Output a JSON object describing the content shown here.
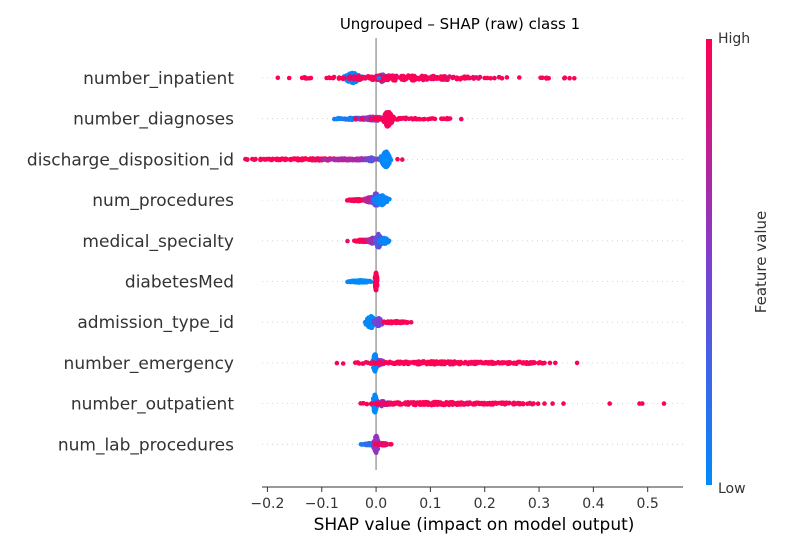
{
  "chart_data": {
    "type": "scatter",
    "subtype": "shap-beeswarm",
    "title": "Ungrouped – SHAP (raw) class 1",
    "xlabel": "SHAP value (impact on model output)",
    "xlim": [
      -0.21,
      0.565
    ],
    "x_ticks": [
      -0.2,
      -0.1,
      0.0,
      0.1,
      0.2,
      0.3,
      0.4,
      0.5
    ],
    "x_tick_labels": [
      "−0.2",
      "−0.1",
      "0.0",
      "0.1",
      "0.2",
      "0.3",
      "0.4",
      "0.5"
    ],
    "grid": false,
    "colorbar": {
      "label": "Feature value",
      "high_label": "High",
      "low_label": "Low",
      "high_color": "#ff0052",
      "mid_color": "#7d3fd1",
      "low_color": "#008bfb"
    },
    "features": [
      {
        "name": "number_inpatient",
        "clusters": [
          {
            "center": -0.043,
            "spread": 0.007,
            "count": 170,
            "color_value": 0.0,
            "width": 5
          },
          {
            "center": 0.012,
            "spread": 0.004,
            "count": 60,
            "color_value": 0.5,
            "width": 4
          },
          {
            "center": 0.05,
            "spread": 0.07,
            "count": 170,
            "color_value": 0.95,
            "width": 2.5
          },
          {
            "center": 0.1,
            "spread": 0.13,
            "count": 60,
            "color_value": 1.0,
            "width": 1
          }
        ],
        "points": [
          {
            "x": -0.16,
            "c": 1.0
          },
          {
            "x": -0.13,
            "c": 1.0
          },
          {
            "x": -0.12,
            "c": 1.0
          },
          {
            "x": -0.085,
            "c": 1.0
          },
          {
            "x": -0.08,
            "c": 1.0
          },
          {
            "x": 0.005,
            "c": 0.1
          },
          {
            "x": 0.205,
            "c": 1.0
          },
          {
            "x": 0.2,
            "c": 1.0
          }
        ]
      },
      {
        "name": "number_diagnoses",
        "clusters": [
          {
            "center": -0.04,
            "spread": 0.02,
            "count": 90,
            "color_value": 0.1,
            "width": 1
          },
          {
            "center": -0.005,
            "spread": 0.014,
            "count": 90,
            "color_value": 0.6,
            "width": 2
          },
          {
            "center": 0.022,
            "spread": 0.004,
            "count": 110,
            "color_value": 1.0,
            "width": 8
          },
          {
            "center": 0.06,
            "spread": 0.04,
            "count": 50,
            "color_value": 1.0,
            "width": 1
          }
        ],
        "points": [
          {
            "x": -0.072,
            "c": 0.0
          },
          {
            "x": -0.065,
            "c": 0.05
          },
          {
            "x": 0.1,
            "c": 1.0
          },
          {
            "x": 0.12,
            "c": 1.0
          },
          {
            "x": 0.125,
            "c": 1.0
          }
        ]
      },
      {
        "name": "discharge_disposition_id",
        "clusters": [
          {
            "center": -0.11,
            "spread": 0.06,
            "count": 170,
            "color_value": 1.0,
            "width": 1
          },
          {
            "center": -0.04,
            "spread": 0.025,
            "count": 80,
            "color_value": 0.65,
            "width": 1
          },
          {
            "center": -0.01,
            "spread": 0.004,
            "count": 40,
            "color_value": 0.4,
            "width": 2
          },
          {
            "center": 0.018,
            "spread": 0.004,
            "count": 110,
            "color_value": 0.0,
            "width": 8
          }
        ],
        "points": [
          {
            "x": -0.17,
            "c": 1.0
          },
          {
            "x": -0.165,
            "c": 1.0
          }
        ]
      },
      {
        "name": "num_procedures",
        "clusters": [
          {
            "center": -0.035,
            "spread": 0.008,
            "count": 60,
            "color_value": 1.0,
            "width": 1
          },
          {
            "center": -0.01,
            "spread": 0.006,
            "count": 50,
            "color_value": 0.7,
            "width": 3
          },
          {
            "center": 0.0,
            "spread": 0.003,
            "count": 60,
            "color_value": 0.4,
            "width": 7
          },
          {
            "center": 0.01,
            "spread": 0.006,
            "count": 90,
            "color_value": 0.0,
            "width": 5
          }
        ],
        "points": [
          {
            "x": -0.05,
            "c": 1.0
          },
          {
            "x": -0.048,
            "c": 1.0
          }
        ]
      },
      {
        "name": "medical_specialty",
        "clusters": [
          {
            "center": -0.025,
            "spread": 0.01,
            "count": 60,
            "color_value": 0.95,
            "width": 1
          },
          {
            "center": -0.005,
            "spread": 0.005,
            "count": 70,
            "color_value": 0.6,
            "width": 3
          },
          {
            "center": 0.004,
            "spread": 0.003,
            "count": 60,
            "color_value": 0.35,
            "width": 7
          },
          {
            "center": 0.016,
            "spread": 0.004,
            "count": 40,
            "color_value": 0.05,
            "width": 3
          }
        ],
        "points": [
          {
            "x": -0.04,
            "c": 1.0
          },
          {
            "x": -0.038,
            "c": 1.0
          }
        ]
      },
      {
        "name": "diabetesMed",
        "clusters": [
          {
            "center": -0.03,
            "spread": 0.01,
            "count": 140,
            "color_value": 0.0,
            "width": 1
          },
          {
            "center": 0.0,
            "spread": 0.001,
            "count": 90,
            "color_value": 1.0,
            "width": 9
          }
        ],
        "points": []
      },
      {
        "name": "admission_type_id",
        "clusters": [
          {
            "center": -0.01,
            "spread": 0.005,
            "count": 80,
            "color_value": 0.0,
            "width": 6
          },
          {
            "center": 0.005,
            "spread": 0.004,
            "count": 50,
            "color_value": 0.45,
            "width": 4
          },
          {
            "center": 0.035,
            "spread": 0.012,
            "count": 60,
            "color_value": 1.0,
            "width": 1
          }
        ],
        "points": [
          {
            "x": -0.02,
            "c": 0.05
          },
          {
            "x": 0.055,
            "c": 1.0
          }
        ]
      },
      {
        "name": "number_emergency",
        "clusters": [
          {
            "center": -0.002,
            "spread": 0.002,
            "count": 100,
            "color_value": 0.0,
            "width": 9
          },
          {
            "center": 0.008,
            "spread": 0.004,
            "count": 30,
            "color_value": 0.55,
            "width": 3
          },
          {
            "center": 0.11,
            "spread": 0.07,
            "count": 200,
            "color_value": 1.0,
            "width": 1.5
          },
          {
            "center": 0.26,
            "spread": 0.03,
            "count": 50,
            "color_value": 1.0,
            "width": 1
          }
        ],
        "points": [
          {
            "x": 0.3,
            "c": 1.0
          },
          {
            "x": 0.31,
            "c": 1.0
          },
          {
            "x": 0.32,
            "c": 1.0
          },
          {
            "x": 0.33,
            "c": 1.0
          },
          {
            "x": 0.37,
            "c": 1.0
          }
        ]
      },
      {
        "name": "number_outpatient",
        "clusters": [
          {
            "center": -0.002,
            "spread": 0.002,
            "count": 100,
            "color_value": 0.0,
            "width": 9
          },
          {
            "center": 0.01,
            "spread": 0.005,
            "count": 40,
            "color_value": 0.55,
            "width": 3
          },
          {
            "center": 0.1,
            "spread": 0.06,
            "count": 200,
            "color_value": 1.0,
            "width": 1.5
          },
          {
            "center": 0.24,
            "spread": 0.035,
            "count": 50,
            "color_value": 1.0,
            "width": 1
          }
        ],
        "points": [
          {
            "x": 0.29,
            "c": 1.0
          },
          {
            "x": 0.31,
            "c": 1.0
          },
          {
            "x": 0.325,
            "c": 1.0
          },
          {
            "x": 0.345,
            "c": 1.0
          },
          {
            "x": 0.43,
            "c": 1.0
          },
          {
            "x": 0.485,
            "c": 1.0
          },
          {
            "x": 0.49,
            "c": 1.0
          },
          {
            "x": 0.53,
            "c": 1.0
          }
        ]
      },
      {
        "name": "num_lab_procedures",
        "clusters": [
          {
            "center": -0.012,
            "spread": 0.006,
            "count": 70,
            "color_value": 0.2,
            "width": 1
          },
          {
            "center": 0.0,
            "spread": 0.002,
            "count": 80,
            "color_value": 0.6,
            "width": 9
          },
          {
            "center": 0.012,
            "spread": 0.006,
            "count": 60,
            "color_value": 0.95,
            "width": 1
          }
        ],
        "points": [
          {
            "x": -0.028,
            "c": 0.1
          },
          {
            "x": 0.028,
            "c": 1.0
          }
        ]
      }
    ]
  }
}
